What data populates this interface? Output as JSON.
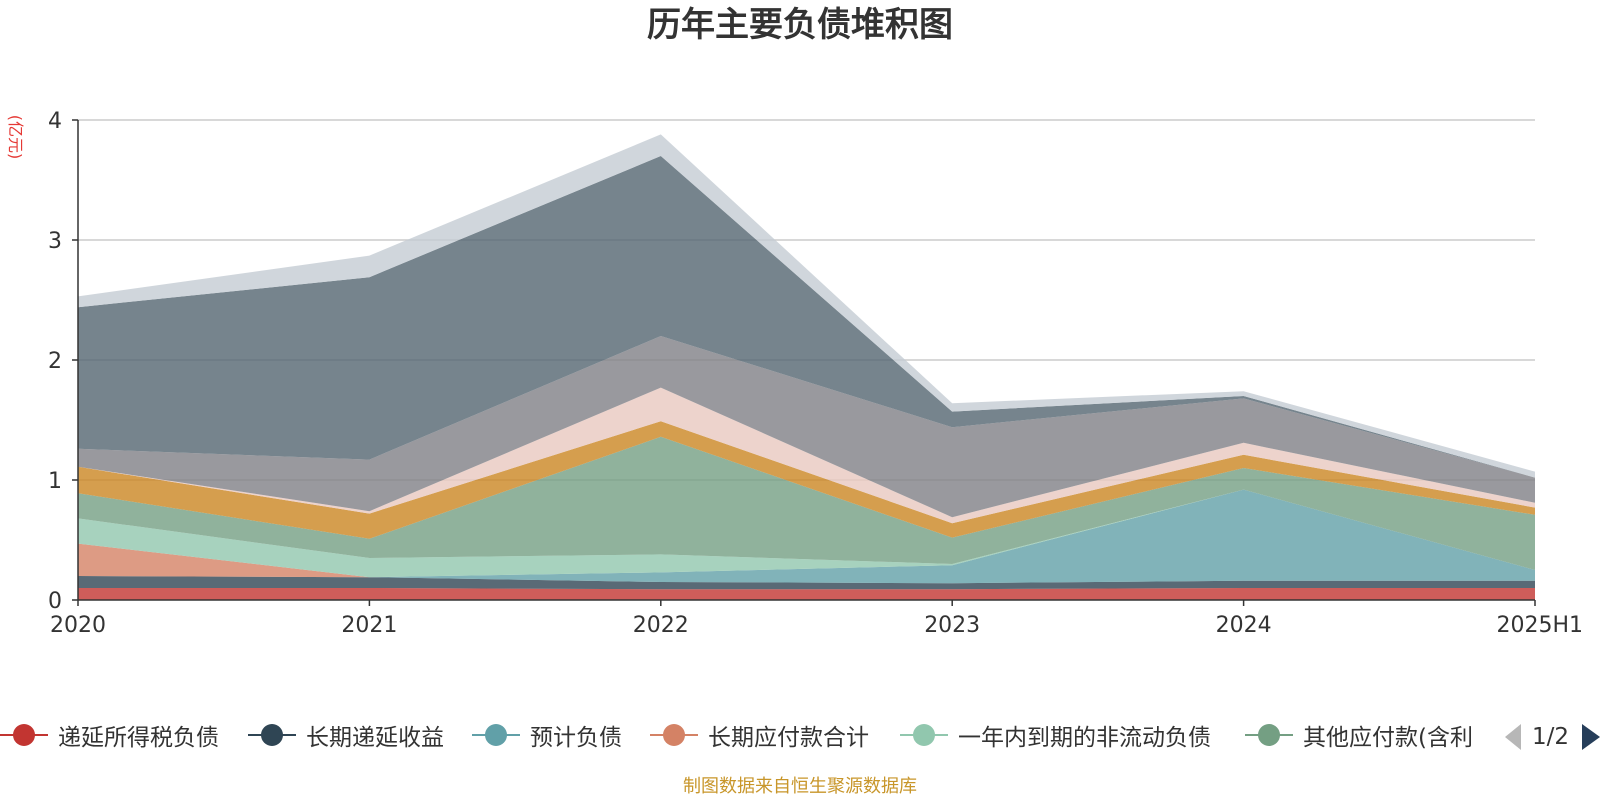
{
  "chart_data": {
    "type": "area",
    "stacked": true,
    "title": "历年主要负债堆积图",
    "unit_label": "(亿元)",
    "categories": [
      "2020",
      "2021",
      "2022",
      "2023",
      "2024",
      "2025H1"
    ],
    "ylim": [
      0,
      4
    ],
    "y_ticks": [
      0,
      1,
      2,
      3,
      4
    ],
    "grid": true,
    "legend_position": "bottom",
    "series": [
      {
        "name": "递延所得税负债",
        "color": "#c23531",
        "values": [
          0.1,
          0.1,
          0.09,
          0.09,
          0.1,
          0.1
        ]
      },
      {
        "name": "长期递延收益",
        "color": "#2f4554",
        "values": [
          0.1,
          0.09,
          0.06,
          0.05,
          0.06,
          0.06
        ]
      },
      {
        "name": "预计负债",
        "color": "#61a0a8",
        "values": [
          0.0,
          0.0,
          0.08,
          0.15,
          0.76,
          0.09
        ]
      },
      {
        "name": "长期应付款合计",
        "color": "#d48265",
        "values": [
          0.27,
          0.0,
          0.0,
          0.0,
          0.0,
          0.0
        ]
      },
      {
        "name": "一年内到期的非流动负债",
        "color": "#91c7ae",
        "values": [
          0.21,
          0.16,
          0.15,
          0.01,
          0.0,
          0.0
        ]
      },
      {
        "name": "其他应付款(含利",
        "color": "#749f83",
        "values": [
          0.21,
          0.16,
          0.98,
          0.22,
          0.18,
          0.46
        ]
      },
      {
        "name": "",
        "color": "#ca8622",
        "values": [
          0.22,
          0.21,
          0.13,
          0.12,
          0.11,
          0.06
        ]
      },
      {
        "name": "",
        "color": "#e8c8bf",
        "values": [
          0.0,
          0.02,
          0.28,
          0.05,
          0.1,
          0.04
        ]
      },
      {
        "name": "",
        "color": "#7f7f86",
        "values": [
          0.15,
          0.43,
          0.43,
          0.75,
          0.37,
          0.21
        ]
      },
      {
        "name": "",
        "color": "#546570",
        "values": [
          1.18,
          1.52,
          1.5,
          0.13,
          0.02,
          0.0
        ]
      },
      {
        "name": "",
        "color": "#c4ccd3",
        "values": [
          0.09,
          0.18,
          0.18,
          0.07,
          0.04,
          0.05
        ]
      }
    ]
  },
  "legend": {
    "page": "1/2"
  },
  "source_note": "制图数据来自恒生聚源数据库"
}
